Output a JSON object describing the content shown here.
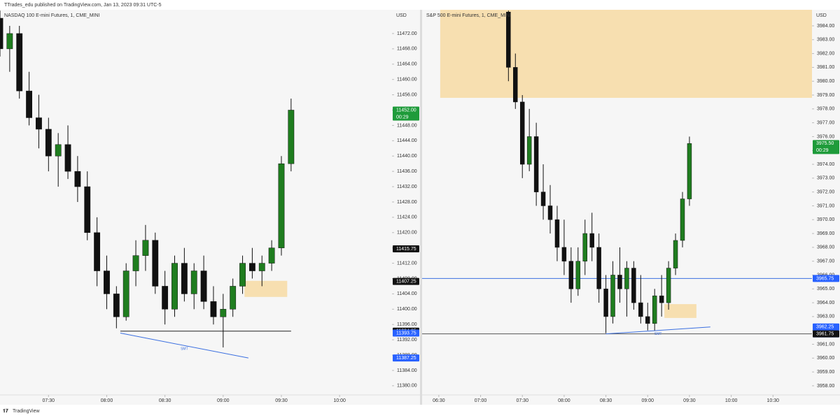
{
  "header": "TTrades_edu published on TradingView.com, Jan 13, 2023 09:31 UTC-5",
  "footer": "TradingView",
  "chart_data": [
    {
      "type": "candlestick",
      "title": "NASDAQ 100 E-mini Futures, 1, CME_MINI",
      "y_unit": "USD",
      "up_color": "#1f7d1f",
      "down_color": "#111111",
      "x": [
        "07:05",
        "07:10",
        "07:15",
        "07:20",
        "07:25",
        "07:30",
        "07:35",
        "07:40",
        "07:45",
        "07:50",
        "07:55",
        "08:00",
        "08:05",
        "08:10",
        "08:15",
        "08:20",
        "08:25",
        "08:30",
        "08:35",
        "08:40",
        "08:45",
        "08:50",
        "08:55",
        "09:00",
        "09:05",
        "09:10",
        "09:15",
        "09:20",
        "09:25",
        "09:30",
        "09:35"
      ],
      "open": [
        11476,
        11468,
        11472,
        11457,
        11450,
        11447,
        11440,
        11443,
        11436,
        11432,
        11420,
        11410,
        11404,
        11398,
        11410,
        11414,
        11418,
        11406,
        11400,
        11412,
        11404,
        11410,
        11402,
        11398,
        11400,
        11406,
        11412,
        11410,
        11412,
        11416,
        11438
      ],
      "high": [
        11478,
        11474,
        11474,
        11462,
        11456,
        11450,
        11446,
        11448,
        11440,
        11436,
        11424,
        11414,
        11406,
        11412,
        11418,
        11422,
        11420,
        11410,
        11414,
        11416,
        11412,
        11414,
        11406,
        11404,
        11408,
        11414,
        11416,
        11414,
        11418,
        11440,
        11455
      ],
      "low": [
        11466,
        11462,
        11455,
        11448,
        11442,
        11436,
        11432,
        11434,
        11428,
        11418,
        11406,
        11400,
        11395,
        11397,
        11406,
        11410,
        11404,
        11396,
        11398,
        11402,
        11400,
        11400,
        11396,
        11390,
        11398,
        11404,
        11408,
        11406,
        11410,
        11414,
        11436
      ],
      "close": [
        11468,
        11472,
        11457,
        11450,
        11447,
        11440,
        11443,
        11436,
        11432,
        11420,
        11410,
        11404,
        11398,
        11410,
        11414,
        11418,
        11406,
        11400,
        11412,
        11404,
        11410,
        11402,
        11398,
        11400,
        11406,
        11412,
        11410,
        11412,
        11416,
        11438,
        11452
      ],
      "xlim": [
        "07:05",
        "10:27"
      ],
      "xticks": [
        "07:30",
        "08:00",
        "08:30",
        "09:00",
        "09:30",
        "10:00"
      ],
      "ylim": [
        11377.6,
        11478.2
      ],
      "yticks": [
        {
          "value": 11380,
          "label": "11380.00"
        },
        {
          "value": 11384,
          "label": "11384.00"
        },
        {
          "value": 11388,
          "label": "11388.00"
        },
        {
          "value": 11392,
          "label": "11392.00"
        },
        {
          "value": 11396,
          "label": "11396.00"
        },
        {
          "value": 11400,
          "label": "11400.00"
        },
        {
          "value": 11404,
          "label": "11404.00"
        },
        {
          "value": 11408,
          "label": "11408.00"
        },
        {
          "value": 11412,
          "label": "11412.00"
        },
        {
          "value": 11416,
          "label": "11416.00"
        },
        {
          "value": 11420,
          "label": "11420.00"
        },
        {
          "value": 11424,
          "label": "11424.00"
        },
        {
          "value": 11428,
          "label": "11428.00"
        },
        {
          "value": 11432,
          "label": "11432.00"
        },
        {
          "value": 11436,
          "label": "11436.00"
        },
        {
          "value": 11440,
          "label": "11440.00"
        },
        {
          "value": 11444,
          "label": "11444.00"
        },
        {
          "value": 11448,
          "label": "11448.00"
        },
        {
          "value": 11452,
          "label": "11452.00"
        },
        {
          "value": 11456,
          "label": "11456.00"
        },
        {
          "value": 11460,
          "label": "11460.00"
        },
        {
          "value": 11464,
          "label": "11464.00"
        },
        {
          "value": 11468,
          "label": "11468.00"
        },
        {
          "value": 11472,
          "label": "11472.00"
        }
      ],
      "zones": [
        {
          "x": [
            "09:11",
            "09:33"
          ],
          "y": [
            11403.2,
            11407.4
          ],
          "color": "#f7dfb0"
        }
      ],
      "lines": [
        {
          "x": [
            "08:07",
            "09:35"
          ],
          "y": [
            11394.25,
            11394.25
          ],
          "color": "#222222"
        },
        {
          "x": [
            "08:07",
            "09:13"
          ],
          "y": [
            11393.75,
            11387.25
          ],
          "color": "#3b6fe0",
          "label": "SMT"
        }
      ],
      "price_labels": [
        {
          "value": 11452,
          "label": "11452.00",
          "countdown": "00:29",
          "color": "#1e9b3a"
        },
        {
          "value": 11415.75,
          "label": "11415.75",
          "color": "#111111"
        },
        {
          "value": 11407.25,
          "label": "11407.25",
          "color": "#111111"
        },
        {
          "value": 11394.25,
          "label": "11394.25",
          "color": "#111111"
        },
        {
          "value": 11393.75,
          "label": "11393.75",
          "color": "#2962ff"
        },
        {
          "value": 11387.25,
          "label": "11387.25",
          "color": "#2962ff"
        }
      ]
    },
    {
      "type": "candlestick",
      "title": "S&P 500 E-mini Futures, 1, CME_MINI",
      "y_unit": "USD",
      "up_color": "#1f7d1f",
      "down_color": "#111111",
      "x": [
        "07:20",
        "07:25",
        "07:30",
        "07:35",
        "07:40",
        "07:45",
        "07:50",
        "07:55",
        "08:00",
        "08:05",
        "08:10",
        "08:15",
        "08:20",
        "08:25",
        "08:30",
        "08:35",
        "08:40",
        "08:45",
        "08:50",
        "08:55",
        "09:00",
        "09:05",
        "09:10",
        "09:15",
        "09:20",
        "09:25",
        "09:30"
      ],
      "open": [
        3985,
        3981,
        3978.5,
        3974,
        3976,
        3972,
        3971,
        3970,
        3968,
        3967,
        3965,
        3967,
        3969,
        3968,
        3965,
        3963,
        3966,
        3965,
        3966.5,
        3964,
        3963,
        3962.5,
        3964.5,
        3964,
        3966.5,
        3968.5,
        3971.5
      ],
      "high": [
        3985.1,
        3982,
        3979,
        3978,
        3977,
        3974,
        3972.5,
        3971,
        3970,
        3968,
        3968,
        3970,
        3970.5,
        3969,
        3966,
        3967,
        3968,
        3967,
        3967,
        3966,
        3964,
        3965,
        3966,
        3967,
        3969,
        3972,
        3976
      ],
      "low": [
        3980,
        3978,
        3973,
        3973.5,
        3971,
        3970,
        3969,
        3967,
        3966,
        3964,
        3964.5,
        3966,
        3967,
        3964,
        3961.8,
        3962.5,
        3964,
        3963,
        3963.5,
        3962.5,
        3962,
        3962,
        3963,
        3963.5,
        3966,
        3968,
        3971
      ],
      "close": [
        3981,
        3978.5,
        3974,
        3976,
        3972,
        3971,
        3970,
        3968,
        3967,
        3965,
        3967,
        3969,
        3968,
        3965,
        3963,
        3966,
        3965,
        3966.5,
        3964,
        3963,
        3962.5,
        3964.5,
        3964,
        3966.5,
        3968.5,
        3971.5,
        3975.5
      ],
      "xlim": [
        "06:18",
        "10:58"
      ],
      "xticks": [
        "06:30",
        "07:00",
        "07:30",
        "08:00",
        "08:30",
        "09:00",
        "09:30",
        "10:00",
        "10:30"
      ],
      "ylim": [
        3957.34,
        3985.16
      ],
      "yticks": [
        {
          "value": 3958,
          "label": "3958.00"
        },
        {
          "value": 3959,
          "label": "3959.00"
        },
        {
          "value": 3960,
          "label": "3960.00"
        },
        {
          "value": 3961,
          "label": "3961.00"
        },
        {
          "value": 3962,
          "label": "3962.00"
        },
        {
          "value": 3963,
          "label": "3963.00"
        },
        {
          "value": 3964,
          "label": "3964.00"
        },
        {
          "value": 3965,
          "label": "3965.00"
        },
        {
          "value": 3966,
          "label": "3966.00"
        },
        {
          "value": 3967,
          "label": "3967.00"
        },
        {
          "value": 3968,
          "label": "3968.00"
        },
        {
          "value": 3969,
          "label": "3969.00"
        },
        {
          "value": 3970,
          "label": "3970.00"
        },
        {
          "value": 3971,
          "label": "3971.00"
        },
        {
          "value": 3972,
          "label": "3972.00"
        },
        {
          "value": 3973,
          "label": "3973.00"
        },
        {
          "value": 3974,
          "label": "3974.00"
        },
        {
          "value": 3975,
          "label": "3975.00"
        },
        {
          "value": 3976,
          "label": "3976.00"
        },
        {
          "value": 3977,
          "label": "3977.00"
        },
        {
          "value": 3978,
          "label": "3978.00"
        },
        {
          "value": 3979,
          "label": "3979.00"
        },
        {
          "value": 3980,
          "label": "3980.00"
        },
        {
          "value": 3981,
          "label": "3981.00"
        },
        {
          "value": 3982,
          "label": "3982.00"
        },
        {
          "value": 3983,
          "label": "3983.00"
        },
        {
          "value": 3984,
          "label": "3984.00"
        }
      ],
      "zones": [
        {
          "x": [
            "06:31",
            "10:58"
          ],
          "y": [
            3978.8,
            3985.16
          ],
          "color": "#f7dfb0"
        },
        {
          "x": [
            "09:12",
            "09:35"
          ],
          "y": [
            3962.9,
            3963.9
          ],
          "color": "#f7dfb0"
        }
      ],
      "lines": [
        {
          "x": [
            "06:18",
            "10:58"
          ],
          "y": [
            3965.75,
            3965.75
          ],
          "color": "#3b6fe0"
        },
        {
          "x": [
            "06:18",
            "10:58"
          ],
          "y": [
            3961.75,
            3961.75
          ],
          "color": "#555555"
        },
        {
          "x": [
            "08:30",
            "09:45"
          ],
          "y": [
            3961.75,
            3962.25
          ],
          "color": "#3b6fe0",
          "label": "SMT"
        }
      ],
      "price_labels": [
        {
          "value": 3975.5,
          "label": "3975.50",
          "countdown": "00:29",
          "color": "#1e9b3a"
        },
        {
          "value": 3965.75,
          "label": "3965.75",
          "color": "#2962ff"
        },
        {
          "value": 3962.25,
          "label": "3962.25",
          "color": "#2962ff"
        },
        {
          "value": 3961.75,
          "label": "3961.75",
          "color": "#2962ff"
        },
        {
          "value": 3961.75,
          "label": "3961.75",
          "color": "#111111"
        }
      ]
    }
  ]
}
